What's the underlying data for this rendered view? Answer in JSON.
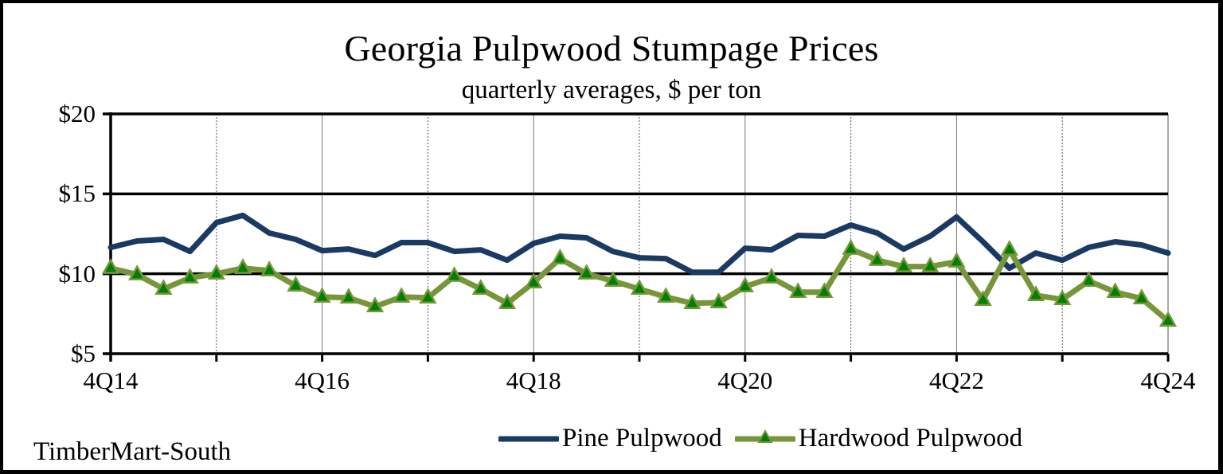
{
  "chart_data": {
    "type": "line",
    "title": "Georgia Pulpwood Stumpage Prices",
    "subtitle": "quarterly averages, $ per ton",
    "xlabel": "",
    "ylabel": "",
    "ylim": [
      5,
      20
    ],
    "yticks": [
      "$5",
      "$10",
      "$15",
      "$20"
    ],
    "ytick_values": [
      5,
      10,
      15,
      20
    ],
    "xtick_labels": [
      "4Q14",
      "4Q16",
      "4Q18",
      "4Q20",
      "4Q22",
      "4Q24"
    ],
    "xtick_indices": [
      0,
      8,
      16,
      24,
      32,
      40
    ],
    "grid": {
      "horizontal": true,
      "vertical": true,
      "vertical_every_quarters": 4
    },
    "legend_position": "bottom-right",
    "x": [
      "4Q14",
      "1Q15",
      "2Q15",
      "3Q15",
      "4Q15",
      "1Q16",
      "2Q16",
      "3Q16",
      "4Q16",
      "1Q17",
      "2Q17",
      "3Q17",
      "4Q17",
      "1Q18",
      "2Q18",
      "3Q18",
      "4Q18",
      "1Q19",
      "2Q19",
      "3Q19",
      "4Q19",
      "1Q20",
      "2Q20",
      "3Q20",
      "4Q20",
      "1Q21",
      "2Q21",
      "3Q21",
      "4Q21",
      "1Q22",
      "2Q22",
      "3Q22",
      "4Q22",
      "1Q23",
      "2Q23",
      "3Q23",
      "4Q23",
      "1Q24",
      "2Q24",
      "3Q24",
      "4Q24"
    ],
    "series": [
      {
        "name": "Pine Pulpwood",
        "color": "#1b3a63",
        "marker": "none",
        "values": [
          11.65,
          12.05,
          12.15,
          11.4,
          13.2,
          13.65,
          12.55,
          12.15,
          11.45,
          11.55,
          11.15,
          11.95,
          11.95,
          11.4,
          11.5,
          10.85,
          11.9,
          12.35,
          12.25,
          11.4,
          11.0,
          10.95,
          10.1,
          10.1,
          11.6,
          11.5,
          12.4,
          12.35,
          13.05,
          12.55,
          11.55,
          12.35,
          13.55,
          12.0,
          10.35,
          11.3,
          10.85,
          11.65,
          12.0,
          11.8,
          11.3
        ]
      },
      {
        "name": "Hardwood Pulpwood",
        "color": "#77963a",
        "marker": "triangle",
        "marker_color": "#008000",
        "values": [
          10.35,
          9.95,
          9.05,
          9.75,
          10.0,
          10.35,
          10.2,
          9.25,
          8.55,
          8.5,
          7.95,
          8.55,
          8.5,
          9.85,
          9.05,
          8.15,
          9.45,
          10.95,
          10.0,
          9.55,
          9.05,
          8.55,
          8.15,
          8.2,
          9.2,
          9.75,
          8.85,
          8.85,
          11.55,
          10.85,
          10.45,
          10.45,
          10.75,
          8.35,
          11.5,
          8.65,
          8.4,
          9.55,
          8.85,
          8.45,
          7.05
        ]
      }
    ],
    "source": "TimberMart-South"
  }
}
